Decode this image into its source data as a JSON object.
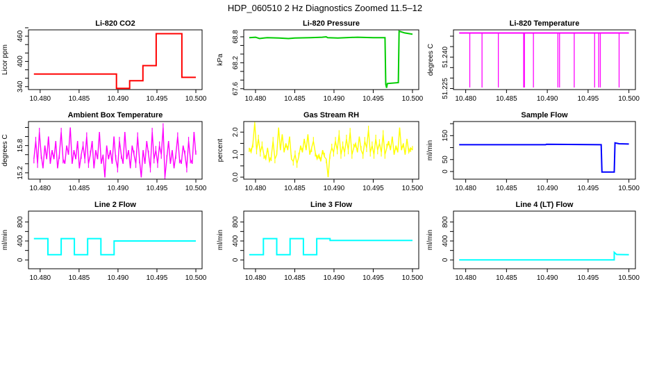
{
  "title": "HDP_060510  2 Hz Diagnostics Zoomed 11.5–12",
  "chart_data": [
    {
      "type": "line",
      "title": "Li-820 CO2",
      "ylabel": "Licor ppm",
      "color": "#ff0000",
      "xlim": [
        10.4785,
        10.5008
      ],
      "ylim": [
        333,
        475
      ],
      "xticks": [
        10.48,
        10.485,
        10.49,
        10.495,
        10.5
      ],
      "xticklabels": [
        "10.480",
        "10.485",
        "10.490",
        "10.495",
        "10.500"
      ],
      "yticks": [
        340,
        360,
        380,
        400,
        420,
        440,
        460,
        480
      ],
      "yticklabels": [
        "340",
        "",
        "",
        "400",
        "",
        "",
        "460",
        ""
      ],
      "points": [
        [
          10.4792,
          370
        ],
        [
          10.4898,
          370
        ],
        [
          10.4898,
          336
        ],
        [
          10.4915,
          336
        ],
        [
          10.4915,
          354
        ],
        [
          10.4932,
          354
        ],
        [
          10.4932,
          390
        ],
        [
          10.4949,
          390
        ],
        [
          10.4949,
          466
        ],
        [
          10.4982,
          466
        ],
        [
          10.4982,
          362
        ],
        [
          10.5,
          362
        ]
      ]
    },
    {
      "type": "line",
      "title": "Li-820 Pressure",
      "ylabel": "kPa",
      "color": "#00cc00",
      "xlim": [
        10.4785,
        10.5008
      ],
      "ylim": [
        67.58,
        68.96
      ],
      "xticks": [
        10.48,
        10.485,
        10.49,
        10.495,
        10.5
      ],
      "xticklabels": [
        "10.480",
        "10.485",
        "10.490",
        "10.495",
        "10.500"
      ],
      "yticks": [
        67.6,
        67.8,
        68.0,
        68.2,
        68.4,
        68.6,
        68.8
      ],
      "yticklabels": [
        "67.6",
        "",
        "",
        "68.2",
        "",
        "",
        "68.8"
      ],
      "points": [
        [
          10.4792,
          68.78
        ],
        [
          10.48,
          68.79
        ],
        [
          10.4805,
          68.76
        ],
        [
          10.4815,
          68.78
        ],
        [
          10.483,
          68.77
        ],
        [
          10.4842,
          68.76
        ],
        [
          10.485,
          68.77
        ],
        [
          10.487,
          68.78
        ],
        [
          10.4885,
          68.79
        ],
        [
          10.489,
          68.8
        ],
        [
          10.4892,
          68.78
        ],
        [
          10.4905,
          68.77
        ],
        [
          10.4915,
          68.78
        ],
        [
          10.493,
          68.79
        ],
        [
          10.495,
          68.78
        ],
        [
          10.4965,
          68.78
        ],
        [
          10.4966,
          67.7
        ],
        [
          10.4967,
          67.62
        ],
        [
          10.4968,
          67.72
        ],
        [
          10.4982,
          67.74
        ],
        [
          10.4983,
          68.93
        ],
        [
          10.499,
          68.89
        ],
        [
          10.5,
          68.86
        ]
      ]
    },
    {
      "type": "line",
      "title": "Li-820 Temperature",
      "ylabel": "degrees C",
      "color": "#ff00ff",
      "xlim": [
        10.4785,
        10.5008
      ],
      "ylim": [
        51.2245,
        51.253
      ],
      "xticks": [
        10.48,
        10.485,
        10.49,
        10.495,
        10.5
      ],
      "xticklabels": [
        "10.480",
        "10.485",
        "10.490",
        "10.495",
        "10.500"
      ],
      "yticks": [
        51.225,
        51.23,
        51.235,
        51.24,
        51.245,
        51.25
      ],
      "yticklabels": [
        "51.225",
        "",
        "",
        "51.240",
        "",
        ""
      ],
      "baseline": 51.2515,
      "spike_min": 51.2255,
      "spikes": [
        10.4805,
        10.482,
        10.484,
        10.4871,
        10.4872,
        10.4883,
        10.4913,
        10.4915,
        10.4933,
        10.4958,
        10.4963,
        10.4965,
        10.4988
      ]
    },
    {
      "type": "line",
      "title": "Ambient Box Temperature",
      "ylabel": "degrees C",
      "color": "#ff00ff",
      "xlim": [
        10.4785,
        10.5008
      ],
      "ylim": [
        15.06,
        16.33
      ],
      "xticks": [
        10.48,
        10.485,
        10.49,
        10.495,
        10.5
      ],
      "xticklabels": [
        "10.480",
        "10.485",
        "10.490",
        "10.495",
        "10.500"
      ],
      "yticks": [
        15.2,
        15.4,
        15.6,
        15.8,
        16.0,
        16.2
      ],
      "yticklabels": [
        "15.2",
        "",
        "",
        "15.8",
        "",
        ""
      ],
      "x_range": [
        10.4792,
        10.5
      ],
      "values": [
        15.5,
        15.9,
        15.4,
        16.1,
        15.6,
        15.3,
        15.8,
        15.5,
        16.0,
        15.4,
        15.7,
        15.5,
        15.9,
        15.3,
        15.6,
        16.1,
        15.5,
        15.4,
        15.8,
        15.6,
        16.2,
        15.4,
        15.7,
        15.5,
        15.9,
        15.3,
        15.6,
        15.8,
        15.5,
        16.0,
        15.4,
        15.6,
        15.9,
        15.3,
        15.7,
        15.5,
        16.1,
        15.4,
        15.6,
        15.1,
        15.8,
        15.5,
        15.7,
        15.4,
        16.0,
        15.5,
        15.3,
        15.9,
        15.6,
        15.4,
        16.1,
        15.5,
        15.7,
        15.3,
        15.8,
        15.6,
        15.4,
        16.0,
        15.5,
        15.1,
        15.7,
        15.4,
        15.9,
        15.6,
        15.3,
        16.1,
        15.5,
        15.7,
        15.4,
        15.8,
        15.6,
        16.2,
        15.1,
        15.5,
        15.9,
        15.4,
        15.7,
        15.3,
        15.6,
        16.0,
        15.5,
        15.4,
        15.8,
        15.6,
        15.3,
        15.9,
        15.5,
        15.4,
        16.1,
        15.6
      ]
    },
    {
      "type": "line",
      "title": "Gas Stream RH",
      "ylabel": "percent",
      "color": "#ffff00",
      "xlim": [
        10.4785,
        10.5008
      ],
      "ylim": [
        -0.09,
        2.47
      ],
      "xticks": [
        10.48,
        10.485,
        10.49,
        10.495,
        10.5
      ],
      "xticklabels": [
        "10.480",
        "10.485",
        "10.490",
        "10.495",
        "10.500"
      ],
      "yticks": [
        0,
        0.5,
        1.0,
        1.5,
        2.0
      ],
      "yticklabels": [
        "0.0",
        "",
        "1.0",
        "",
        "2.0"
      ],
      "x_range": [
        10.4792,
        10.5
      ],
      "values": [
        1.3,
        1.1,
        1.5,
        2.4,
        1.2,
        1.7,
        1.1,
        1.4,
        1.0,
        0.8,
        1.3,
        0.7,
        0.9,
        1.6,
        0.8,
        1.0,
        2.2,
        1.2,
        1.9,
        1.1,
        1.5,
        1.2,
        1.8,
        0.8,
        0.7,
        1.0,
        0.6,
        0.9,
        1.4,
        1.1,
        1.7,
        1.2,
        1.9,
        1.0,
        1.3,
        1.6,
        1.1,
        0.8,
        1.0,
        0.7,
        1.2,
        0.9,
        0.8,
        0.0,
        1.0,
        1.3,
        1.1,
        1.6,
        1.2,
        1.9,
        1.0,
        1.4,
        1.1,
        1.7,
        1.2,
        2.0,
        1.0,
        1.3,
        1.5,
        1.1,
        1.8,
        1.2,
        1.0,
        1.6,
        1.3,
        2.1,
        1.1,
        1.4,
        1.0,
        1.7,
        1.2,
        1.5,
        1.1,
        1.9,
        1.0,
        1.3,
        1.6,
        1.2,
        1.8,
        1.0,
        1.4,
        1.1,
        2.2,
        1.2,
        1.5,
        1.0,
        1.7,
        1.1,
        1.3,
        1.2
      ]
    },
    {
      "type": "line",
      "title": "Sample Flow",
      "ylabel": "ml/min",
      "color": "#0000ff",
      "xlim": [
        10.4785,
        10.5008
      ],
      "ylim": [
        -32,
        209
      ],
      "xticks": [
        10.48,
        10.485,
        10.49,
        10.495,
        10.5
      ],
      "xticklabels": [
        "10.480",
        "10.485",
        "10.490",
        "10.495",
        "10.500"
      ],
      "yticks": [
        0,
        50,
        100,
        150,
        200
      ],
      "yticklabels": [
        "0",
        "50",
        "",
        "150",
        ""
      ],
      "points": [
        [
          10.4792,
          112
        ],
        [
          10.4898,
          112
        ],
        [
          10.4899,
          114
        ],
        [
          10.4966,
          112
        ],
        [
          10.4967,
          -2
        ],
        [
          10.4982,
          -2
        ],
        [
          10.4983,
          120
        ],
        [
          10.4988,
          116
        ],
        [
          10.5,
          115
        ]
      ]
    },
    {
      "type": "line",
      "title": "Line 2 Flow",
      "ylabel": "ml/min",
      "color": "#00ffff",
      "xlim": [
        10.4785,
        10.5008
      ],
      "ylim": [
        -186,
        1030
      ],
      "xticks": [
        10.48,
        10.485,
        10.49,
        10.495,
        10.5
      ],
      "xticklabels": [
        "10.480",
        "10.485",
        "10.490",
        "10.495",
        "10.500"
      ],
      "yticks": [
        0,
        200,
        400,
        600,
        800
      ],
      "yticklabels": [
        "0",
        "",
        "400",
        "",
        "800"
      ],
      "points": [
        [
          10.4792,
          450
        ],
        [
          10.481,
          450
        ],
        [
          10.481,
          110
        ],
        [
          10.4827,
          110
        ],
        [
          10.4827,
          450
        ],
        [
          10.4844,
          450
        ],
        [
          10.4844,
          110
        ],
        [
          10.4861,
          110
        ],
        [
          10.4861,
          450
        ],
        [
          10.4878,
          450
        ],
        [
          10.4878,
          110
        ],
        [
          10.4895,
          110
        ],
        [
          10.4895,
          400
        ],
        [
          10.5,
          400
        ]
      ]
    },
    {
      "type": "line",
      "title": "Line 3 Flow",
      "ylabel": "ml/min",
      "color": "#00ffff",
      "xlim": [
        10.4785,
        10.5008
      ],
      "ylim": [
        -186,
        1030
      ],
      "xticks": [
        10.48,
        10.485,
        10.49,
        10.495,
        10.5
      ],
      "xticklabels": [
        "10.480",
        "10.485",
        "10.490",
        "10.495",
        "10.500"
      ],
      "yticks": [
        0,
        200,
        400,
        600,
        800
      ],
      "yticklabels": [
        "0",
        "",
        "400",
        "",
        "800"
      ],
      "points": [
        [
          10.4792,
          110
        ],
        [
          10.481,
          110
        ],
        [
          10.481,
          450
        ],
        [
          10.4827,
          450
        ],
        [
          10.4827,
          110
        ],
        [
          10.4844,
          110
        ],
        [
          10.4844,
          450
        ],
        [
          10.4861,
          450
        ],
        [
          10.4861,
          110
        ],
        [
          10.4878,
          110
        ],
        [
          10.4878,
          450
        ],
        [
          10.4895,
          450
        ],
        [
          10.4895,
          410
        ],
        [
          10.5,
          410
        ]
      ]
    },
    {
      "type": "line",
      "title": "Line 4 (LT) Flow",
      "ylabel": "ml/min",
      "color": "#00ffff",
      "xlim": [
        10.4785,
        10.5008
      ],
      "ylim": [
        -186,
        1030
      ],
      "xticks": [
        10.48,
        10.485,
        10.49,
        10.495,
        10.5
      ],
      "xticklabels": [
        "10.480",
        "10.485",
        "10.490",
        "10.495",
        "10.500"
      ],
      "yticks": [
        0,
        200,
        400,
        600,
        800
      ],
      "yticklabels": [
        "0",
        "",
        "400",
        "",
        "800"
      ],
      "points": [
        [
          10.4792,
          0
        ],
        [
          10.4982,
          0
        ],
        [
          10.4982,
          160
        ],
        [
          10.4985,
          115
        ],
        [
          10.5,
          110
        ]
      ]
    }
  ]
}
